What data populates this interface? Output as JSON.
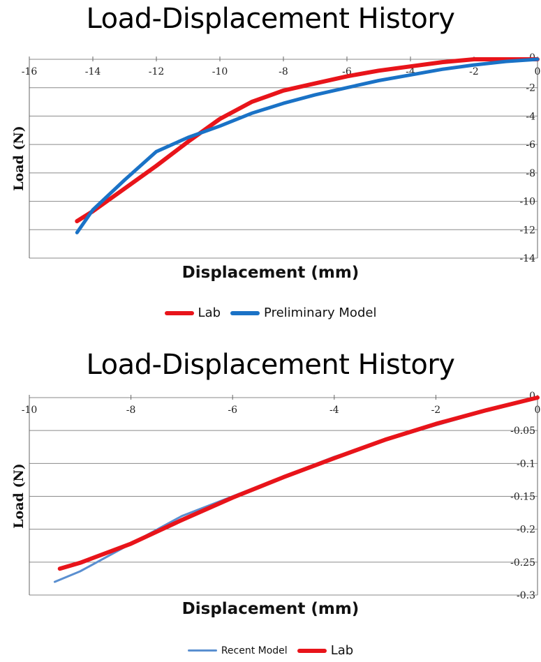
{
  "chart_data": [
    {
      "type": "line",
      "title": "Load-Displacement History",
      "xlabel": "Displacement (mm)",
      "ylabel": "Load (N)",
      "xlim": [
        -16,
        0
      ],
      "ylim": [
        -14,
        0
      ],
      "x_ticks": [
        "-16",
        "-14",
        "-12",
        "-10",
        "-8",
        "-6",
        "-4",
        "-2",
        "0"
      ],
      "y_ticks": [
        "0",
        "-2",
        "-4",
        "-6",
        "-8",
        "-10",
        "-12",
        "-14"
      ],
      "grid": true,
      "legend_position": "bottom",
      "series": [
        {
          "name": "Lab",
          "color": "#e8141a",
          "x": [
            -14.5,
            -14.0,
            -13.0,
            -12.0,
            -11.0,
            -10.0,
            -9.0,
            -8.0,
            -7.0,
            -6.0,
            -5.0,
            -4.0,
            -3.0,
            -2.0,
            -1.0,
            0.0
          ],
          "y": [
            -11.4,
            -10.7,
            -9.1,
            -7.5,
            -5.8,
            -4.2,
            -3.0,
            -2.2,
            -1.7,
            -1.2,
            -0.8,
            -0.5,
            -0.2,
            0.0,
            0.0,
            0.0
          ]
        },
        {
          "name": "Preliminary Model",
          "color": "#1a72c6",
          "x": [
            -14.5,
            -14.0,
            -13.0,
            -12.0,
            -11.0,
            -10.0,
            -9.0,
            -8.0,
            -7.0,
            -6.0,
            -5.0,
            -4.0,
            -3.0,
            -2.0,
            -1.0,
            0.0
          ],
          "y": [
            -12.2,
            -10.6,
            -8.5,
            -6.5,
            -5.5,
            -4.7,
            -3.8,
            -3.1,
            -2.5,
            -2.0,
            -1.5,
            -1.1,
            -0.7,
            -0.4,
            -0.15,
            0.0
          ]
        }
      ]
    },
    {
      "type": "line",
      "title": "Load-Displacement History",
      "xlabel": "Displacement (mm)",
      "ylabel": "Load (N)",
      "xlim": [
        -10,
        0
      ],
      "ylim": [
        -0.3,
        0
      ],
      "x_ticks": [
        "-10",
        "-8",
        "-6",
        "-4",
        "-2",
        "0"
      ],
      "y_ticks": [
        "0",
        "-0.05",
        "-0.1",
        "-0.15",
        "-0.2",
        "-0.25",
        "-0.3"
      ],
      "grid": true,
      "legend_position": "bottom",
      "series": [
        {
          "name": "Recent Model",
          "color": "#5a8fd0",
          "x": [
            -9.5,
            -9.0,
            -8.0,
            -7.0,
            -6.0,
            -5.0,
            -4.0,
            -3.0,
            -2.0,
            -1.0,
            0.0
          ],
          "y": [
            -0.28,
            -0.264,
            -0.222,
            -0.18,
            -0.15,
            -0.12,
            -0.09,
            -0.065,
            -0.042,
            -0.02,
            0.0
          ]
        },
        {
          "name": "Lab",
          "color": "#e8141a",
          "x": [
            -9.4,
            -9.0,
            -8.0,
            -7.0,
            -6.0,
            -5.0,
            -4.0,
            -3.0,
            -2.0,
            -1.0,
            0.0
          ],
          "y": [
            -0.26,
            -0.251,
            -0.222,
            -0.186,
            -0.152,
            -0.121,
            -0.092,
            -0.064,
            -0.04,
            -0.019,
            0.0
          ]
        }
      ]
    }
  ]
}
